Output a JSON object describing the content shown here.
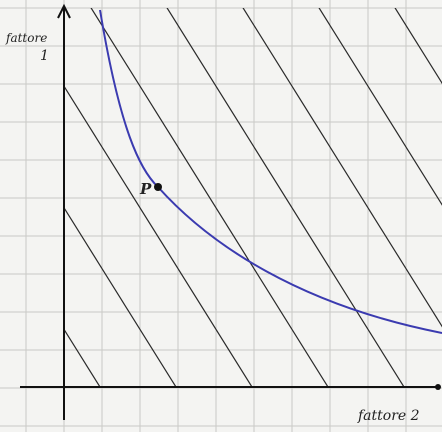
{
  "axes": {
    "y_label": [
      "fattore",
      "1"
    ],
    "x_label": "fattore 2"
  },
  "point": {
    "label": "P"
  }
}
